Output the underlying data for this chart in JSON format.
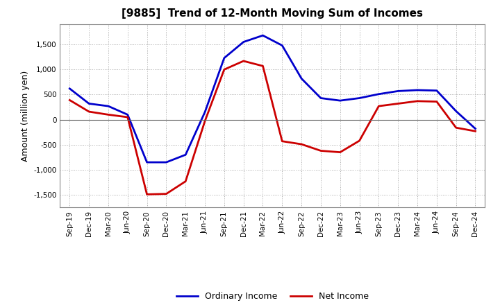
{
  "title": "[9885]  Trend of 12-Month Moving Sum of Incomes",
  "ylabel": "Amount (million yen)",
  "x_labels": [
    "Sep-19",
    "Dec-19",
    "Mar-20",
    "Jun-20",
    "Sep-20",
    "Dec-20",
    "Mar-21",
    "Jun-21",
    "Sep-21",
    "Dec-21",
    "Mar-22",
    "Jun-22",
    "Sep-22",
    "Dec-22",
    "Mar-23",
    "Jun-23",
    "Sep-23",
    "Dec-23",
    "Mar-24",
    "Jun-24",
    "Sep-24",
    "Dec-24"
  ],
  "ordinary_income": [
    620,
    320,
    270,
    100,
    -850,
    -850,
    -700,
    150,
    1230,
    1550,
    1680,
    1480,
    820,
    430,
    380,
    430,
    510,
    570,
    590,
    580,
    170,
    -180
  ],
  "net_income": [
    390,
    160,
    100,
    50,
    -1490,
    -1480,
    -1230,
    -30,
    1000,
    1170,
    1070,
    -430,
    -490,
    -620,
    -650,
    -420,
    270,
    320,
    370,
    360,
    -160,
    -230
  ],
  "ordinary_color": "#0000cc",
  "net_color": "#cc0000",
  "ylim": [
    -1750,
    1900
  ],
  "yticks": [
    -1500,
    -1000,
    -500,
    0,
    500,
    1000,
    1500
  ],
  "line_width": 2.0,
  "background_color": "#ffffff",
  "grid_color": "#aaaaaa",
  "title_fontsize": 11,
  "ylabel_fontsize": 9,
  "tick_fontsize": 7.5
}
